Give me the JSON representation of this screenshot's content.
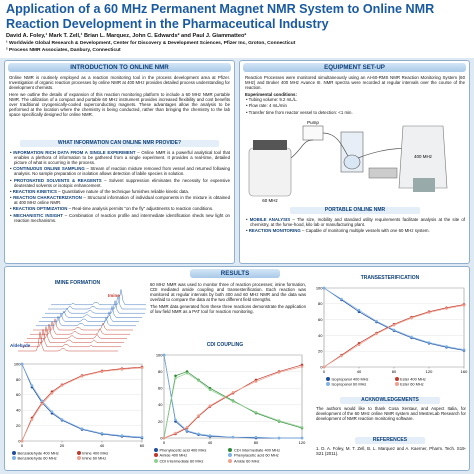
{
  "header": {
    "title": "Application of a 60 MHz Permanent Magnet NMR System to Online NMR Reaction Development in the Pharmaceutical Industry",
    "authors": "David A. Foley,¹ Mark T. Zell,¹ Brian L. Marquez, John C. Edwards² and Paul J. Giammatteo²",
    "affiliations": [
      "¹ Worldwide Global Research & Development, Center for Discovery & Development Sciences, Pfizer Inc, Groton, Connecticut",
      "² Process NMR Associates, Danbury, Connecticut"
    ]
  },
  "intro": {
    "heading": "INTRODUCTION TO ONLINE NMR",
    "paragraphs": [
      "Online NMR is routinely employed as a reaction monitoring tool in the process development area at Pfizer. Investigation of organic reaction processes by online NMR at 400 MHz provides detailed process understanding for development chemists.",
      "Here we outline the details of expansion of this reaction monitoring platform to include a 60 MHz NMR portable NMR. The utilization of a compact and portable 60 MHz instrument provides increased flexibility and cost benefits over traditional cryogenically-cooled superconducting magnets. These advantages allow the analysis to be performed at the location where the chemistry is being conducted, rather than bringing the chemistry to the lab space specifically designed for online NMR."
    ],
    "subheading": "WHAT INFORMATION CAN ONLINE NMR PROVIDE?",
    "bullets": [
      {
        "term": "INFORMATION RICH DATA FROM A SINGLE EXPERIMENT",
        "text": "– Online NMR is a powerful analytical tool that enables a plethora of information to be gathered from a single experiment. It provides a real-time, detailed picture of what is occurring in the process."
      },
      {
        "term": "CONTINUOUS ONLINE SAMPLING",
        "text": "– Stream of reaction mixture removed from vessel and returned following analysis. No sample preparation or isolation allows detection of labile species in solution."
      },
      {
        "term": "PROTONATED SOLVENTS & REAGENTS",
        "text": "– Solvent suppression eliminates the necessity for expensive deuterated solvents or isotopic enhancement."
      },
      {
        "term": "REACTION KINETICS",
        "text": "– Quantitative nature of the technique furnishes reliable kinetic data."
      },
      {
        "term": "REACTION CHARACTERIZATION",
        "text": "– Structural information of individual components in the mixture is obtained at 400 MHz online NMR."
      },
      {
        "term": "REACTION OPTIMIZATION",
        "text": "– Real-time analysis permits \"on the fly\" adjustments to reaction conditions."
      },
      {
        "term": "MECHANISTIC INSIGHT",
        "text": "– Combination of reaction profile and intermediate identification sheds new light on reaction mechanisms."
      }
    ]
  },
  "equipment": {
    "heading": "EQUIPMENT SET-UP",
    "paragraph": "Reaction Processes were monitored simultaneously using an AI-60-RMS NMR Reaction Monitoring System (60 MHz) and Bruker 400 MHz Avance III. NMR spectra were recorded at regular intervals over the course of the reaction.",
    "conditions_label": "Experimental conditions:",
    "conditions": [
      "Tubing volume: 9.2 mL/L.",
      "Flow rate: 4 mL/min",
      "Transfer time from reactor vessel to detection: <1 min."
    ],
    "diagram_labels": [
      "Pump",
      "400 MHz",
      "60 MHz"
    ],
    "portable_heading": "PORTABLE ONLINE NMR",
    "bullets": [
      {
        "term": "MOBILE ANALYSIS",
        "text": "– The size, mobility and standard utility requirements facilitate analysis at the site of chemistry, at the fume-hood, kilo lab or manufacturing plant."
      },
      {
        "term": "REACTION MONITORING",
        "text": "– Capable of monitoring multiple vessels with one 60 MHz system."
      }
    ]
  },
  "results": {
    "heading": "RESULTS",
    "paragraphs": [
      "60 MHz NMR was used to monitor three of reaction processes; imine formation, CDI mediated amide coupling and transesterification. Each reaction was monitored at regular intervals by both 400 and 60 MHz NMR and the data was overlaid to compare the data at the two different field strengths.",
      "The NMR data generated from these three reactions demonstrate the application of low field NMR as a PAT tool for reaction monitoring."
    ]
  },
  "acknowledgements": {
    "heading": "ACKNOWLEDGEMENTS",
    "text": "The authors would like to thank Cosa Xentaur, and Aspect Italia, for development of the 60 MHz online NMR system and MestreLab Research for development of NMR reaction monitoring software."
  },
  "references": {
    "heading": "REFERENCES",
    "items": [
      "1. D. A. Foley, M. T. Zell, B. L. Marquez and A. Kaerner, Pharm. Tech. S19-S21 (2011)."
    ]
  },
  "chart_data": [
    {
      "type": "line",
      "title": "IMINE FORMATION",
      "annotations": [
        "Aldehyde",
        "Imine"
      ],
      "x": [
        0,
        5,
        10,
        15,
        20,
        30,
        40,
        50,
        60
      ],
      "xlim": [
        0,
        60
      ],
      "xticks": [
        0,
        20,
        40,
        60
      ],
      "ylim": [
        0,
        100
      ],
      "yticks": [
        0,
        20,
        40,
        60,
        80,
        100
      ],
      "series": [
        {
          "name": "Benzaldehyde 400 MHz",
          "color": "#1f4e9c",
          "values": [
            100,
            70,
            50,
            36,
            27,
            15,
            9,
            6,
            4
          ]
        },
        {
          "name": "Imine 400 MHz",
          "color": "#c0392b",
          "values": [
            0,
            30,
            50,
            64,
            73,
            85,
            91,
            94,
            96
          ]
        },
        {
          "name": "Benzaldehyde 60 MHz",
          "color": "#7fb2e5",
          "values": [
            100,
            72,
            52,
            38,
            28,
            16,
            10,
            7,
            5
          ]
        },
        {
          "name": "Imine 60 MHz",
          "color": "#f0a090",
          "values": [
            0,
            28,
            48,
            62,
            72,
            84,
            90,
            93,
            95
          ]
        }
      ]
    },
    {
      "type": "line",
      "title": "CDI COUPLING",
      "x": [
        0,
        10,
        20,
        30,
        40,
        60,
        80,
        100,
        120
      ],
      "xlim": [
        0,
        120
      ],
      "xticks": [
        0,
        40,
        80,
        120
      ],
      "ylim": [
        0,
        100
      ],
      "yticks": [
        0,
        20,
        40,
        60,
        80,
        100
      ],
      "series": [
        {
          "name": "Phenylacetic acid 400 MHz",
          "color": "#1f4e9c",
          "values": [
            100,
            20,
            8,
            4,
            2,
            1,
            0,
            0,
            0
          ]
        },
        {
          "name": "CDI Intermediate 400 MHz",
          "color": "#2e8b3a",
          "values": [
            0,
            75,
            80,
            70,
            60,
            45,
            30,
            20,
            12
          ]
        },
        {
          "name": "Amide 400 MHz",
          "color": "#c0392b",
          "values": [
            0,
            5,
            12,
            26,
            38,
            54,
            70,
            80,
            88
          ]
        },
        {
          "name": "Phenylacetic acid 60 MHz",
          "color": "#7fb2e5",
          "values": [
            100,
            22,
            9,
            5,
            3,
            1,
            1,
            0,
            0
          ]
        },
        {
          "name": "CDI Intermediate 60 MHz",
          "color": "#8fd08f",
          "values": [
            0,
            72,
            78,
            69,
            58,
            44,
            31,
            21,
            13
          ]
        },
        {
          "name": "Amide 60 MHz",
          "color": "#f0a090",
          "values": [
            0,
            6,
            13,
            27,
            39,
            55,
            68,
            79,
            86
          ]
        }
      ]
    },
    {
      "type": "line",
      "title": "TRANSESTERIFICATION",
      "x": [
        0,
        20,
        40,
        60,
        80,
        100,
        120,
        140,
        160
      ],
      "xlim": [
        0,
        160
      ],
      "xticks": [
        0,
        40,
        80,
        120,
        160
      ],
      "ylim": [
        0,
        100
      ],
      "yticks": [
        0,
        20,
        40,
        60,
        80,
        100
      ],
      "series": [
        {
          "name": "Isopropanol 400 MHz",
          "color": "#1f4e9c",
          "values": [
            100,
            85,
            70,
            57,
            46,
            37,
            30,
            25,
            21
          ]
        },
        {
          "name": "Ester 400 MHz",
          "color": "#c0392b",
          "values": [
            0,
            15,
            30,
            43,
            54,
            63,
            70,
            75,
            79
          ]
        },
        {
          "name": "Isopropanol 60 MHz",
          "color": "#7fb2e5",
          "values": [
            100,
            86,
            72,
            58,
            47,
            38,
            31,
            26,
            22
          ]
        },
        {
          "name": "Ester 60 MHz",
          "color": "#f0a090",
          "values": [
            0,
            14,
            28,
            42,
            53,
            62,
            69,
            74,
            78
          ]
        }
      ]
    }
  ]
}
